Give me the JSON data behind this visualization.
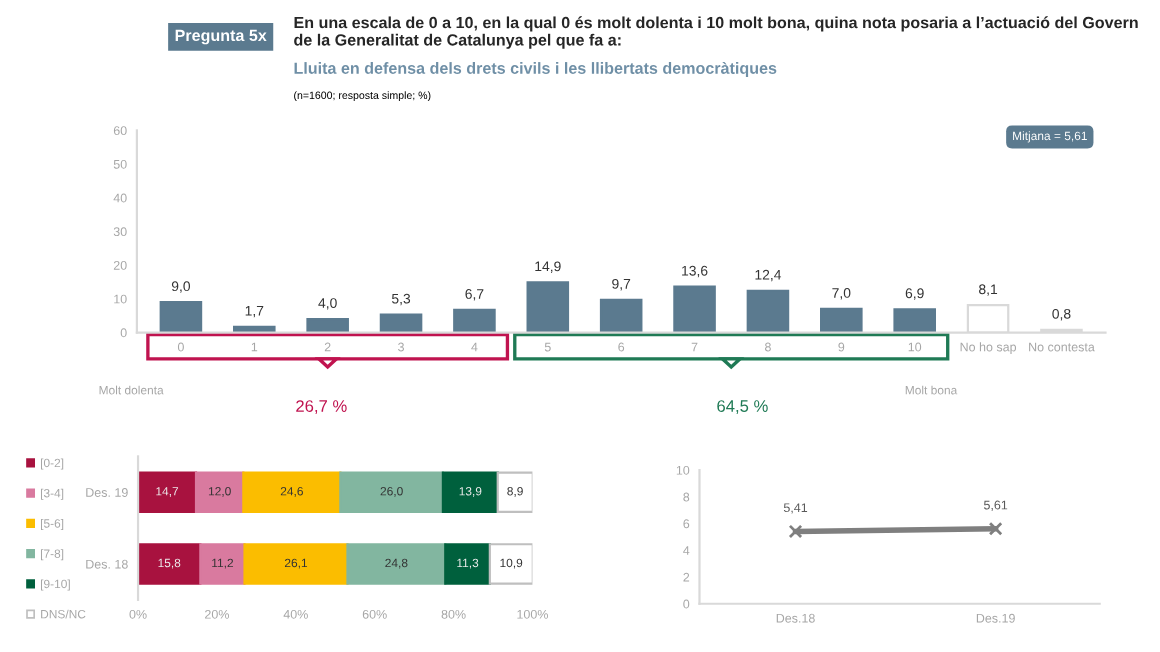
{
  "chart_data": [
    {
      "type": "bar",
      "title": "En una escala de 0 a 10, en la qual 0 és molt dolenta i 10 molt bona, quina nota posaria a l’actuació del Govern de la Generalitat de Catalunya pel que fa a:",
      "subtitle": "Lluita en defensa dels drets civils i les llibertats democràtiques",
      "categories": [
        "0",
        "1",
        "2",
        "3",
        "4",
        "5",
        "6",
        "7",
        "8",
        "9",
        "10",
        "No ho sap",
        "No contesta"
      ],
      "values": [
        9.0,
        1.7,
        4.0,
        5.3,
        6.7,
        14.9,
        9.7,
        13.6,
        12.4,
        7.0,
        6.9,
        8.1,
        0.8
      ],
      "colors": [
        "#5b7a8f",
        "#5b7a8f",
        "#5b7a8f",
        "#5b7a8f",
        "#5b7a8f",
        "#5b7a8f",
        "#5b7a8f",
        "#5b7a8f",
        "#5b7a8f",
        "#5b7a8f",
        "#5b7a8f",
        "#ffffff",
        "#d9d9d9"
      ],
      "value_labels": [
        "9,0",
        "1,7",
        "4,0",
        "5,3",
        "6,7",
        "14,9",
        "9,7",
        "13,6",
        "12,4",
        "7,0",
        "6,9",
        "8,1",
        "0,8"
      ],
      "ylim": [
        0,
        60
      ],
      "yticks": [
        0,
        10,
        20,
        30,
        40,
        50,
        60
      ],
      "grid": false,
      "annotations": [
        "Pregunta 5x",
        "(n=1600; resposta simple; %)",
        "Mitjana = 5,61",
        "Molt dolenta",
        "Molt bona",
        "26,7 %",
        "64,5 %"
      ]
    },
    {
      "type": "bar",
      "orientation": "horizontal",
      "stacked": true,
      "categories": [
        "Des. 19",
        "Des. 18"
      ],
      "series": [
        {
          "name": "[0-2]",
          "color": "#a8123f",
          "values": [
            14.7,
            15.8
          ],
          "value_labels": [
            "14,7",
            "15,8"
          ]
        },
        {
          "name": "[3-4]",
          "color": "#d97a9f",
          "values": [
            12.0,
            11.2
          ],
          "value_labels": [
            "12,0",
            "11,2"
          ]
        },
        {
          "name": "[5-6]",
          "color": "#fbbd00",
          "values": [
            24.6,
            26.1
          ],
          "value_labels": [
            "24,6",
            "26,1"
          ]
        },
        {
          "name": "[7-8]",
          "color": "#82b6a0",
          "values": [
            26.0,
            24.8
          ],
          "value_labels": [
            "26,0",
            "24,8"
          ]
        },
        {
          "name": "[9-10]",
          "color": "#00603d",
          "values": [
            13.9,
            11.3
          ],
          "value_labels": [
            "13,9",
            "11,3"
          ]
        },
        {
          "name": "DNS/NC",
          "color": "#ffffff",
          "values": [
            8.9,
            10.9
          ],
          "value_labels": [
            "8,9",
            "10,9"
          ]
        }
      ],
      "xlim": [
        0,
        100
      ],
      "xticks": [
        {
          "value": 0,
          "label": "0%"
        },
        {
          "value": 20,
          "label": "20%"
        },
        {
          "value": 40,
          "label": "40%"
        },
        {
          "value": 60,
          "label": "60%"
        },
        {
          "value": 80,
          "label": "80%"
        },
        {
          "value": 100,
          "label": "100%"
        }
      ],
      "legend": "left",
      "grid": false
    },
    {
      "type": "line",
      "categories": [
        "Des.18",
        "Des.19"
      ],
      "values": [
        5.41,
        5.61
      ],
      "value_labels": [
        "5,41",
        "5,61"
      ],
      "color": "#7f7f7f",
      "ylim": [
        0,
        10
      ],
      "yticks": [
        0,
        2,
        4,
        6,
        8,
        10
      ],
      "marker": "cross",
      "line_style": "solid",
      "grid": false
    }
  ]
}
